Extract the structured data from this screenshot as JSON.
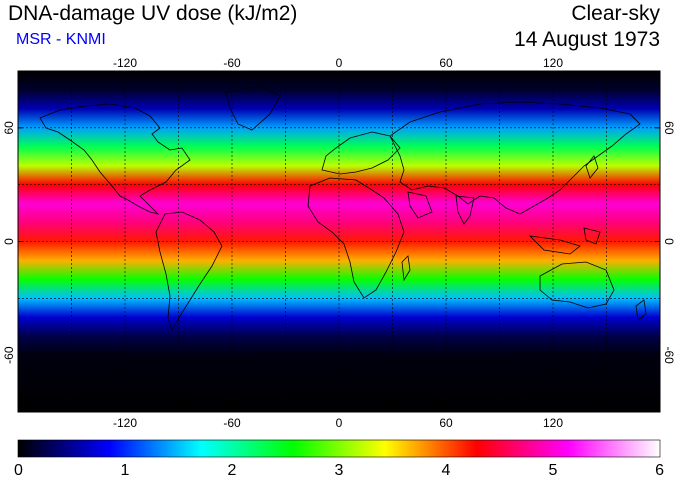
{
  "header": {
    "title": "DNA-damage UV dose (kJ/m2)",
    "subtitle": "MSR - KNMI",
    "subtitle_color": "#0000ff",
    "sky_condition": "Clear-sky",
    "date": "14 August 1973"
  },
  "map": {
    "lon_range": [
      -180,
      180
    ],
    "lat_range": [
      -90,
      90
    ],
    "lon_ticks": [
      -120,
      -60,
      0,
      60,
      120
    ],
    "lon_tick_labels": [
      "-120",
      "-60",
      "0",
      "60",
      "120"
    ],
    "lat_ticks": [
      -60,
      0,
      60
    ],
    "lat_tick_labels": [
      "-60",
      "0",
      "60"
    ],
    "grid_lons": [
      -150,
      -120,
      -90,
      -60,
      -30,
      0,
      30,
      60,
      90,
      120,
      150
    ],
    "grid_lats": [
      -30,
      0,
      30,
      60
    ],
    "grid": "dashed",
    "dose_profile_by_latitude": [
      [
        90,
        0.0
      ],
      [
        80,
        0.15
      ],
      [
        70,
        0.6
      ],
      [
        60,
        1.4
      ],
      [
        50,
        2.3
      ],
      [
        40,
        3.2
      ],
      [
        30,
        4.3
      ],
      [
        20,
        5.0
      ],
      [
        10,
        4.7
      ],
      [
        0,
        4.2
      ],
      [
        -10,
        3.7
      ],
      [
        -20,
        2.6
      ],
      [
        -30,
        1.5
      ],
      [
        -40,
        0.7
      ],
      [
        -50,
        0.25
      ],
      [
        -60,
        0.05
      ],
      [
        -90,
        0.0
      ]
    ],
    "coastline_color": "#000000",
    "icons": [
      "world-coastline-outline"
    ]
  },
  "colorbar": {
    "min": 0,
    "max": 6,
    "tick_labels": [
      "0",
      "1",
      "2",
      "3",
      "4",
      "5",
      "6"
    ],
    "colors": [
      "#000000",
      "#0000ff",
      "#00ffff",
      "#00ff00",
      "#ffff00",
      "#ff0000",
      "#ff00ff",
      "#ffffff"
    ]
  }
}
